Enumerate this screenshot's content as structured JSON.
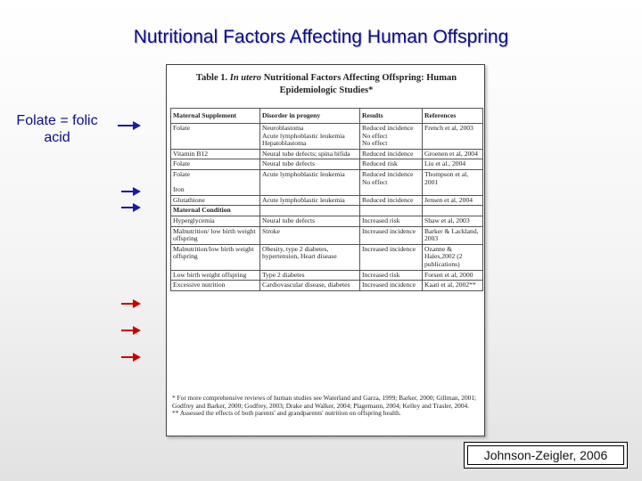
{
  "slide": {
    "title": "Nutritional Factors Affecting Human Offspring",
    "side_note": "Folate = folic acid",
    "credit": "Johnson-Zeigler, 2006"
  },
  "table": {
    "title_prefix": "Table 1.",
    "title_italic": "In utero",
    "title_rest": "Nutritional Factors Affecting Offspring: Human Epidemiologic Studies*",
    "headers": [
      "Maternal Supplement",
      "Disorder in progeny",
      "Results",
      "References"
    ],
    "rows": [
      {
        "c1": "Folate",
        "c2": "Neuroblastoma\nAcute lymphoblastic leukemia\nHepatoblastoma",
        "c3": "Reduced incidence\nNo effect\nNo effect",
        "c4": "French et al, 2003"
      },
      {
        "c1": "Vitamin B12",
        "c2": "Neural tube defects; spina bifida",
        "c3": "Reduced incidence",
        "c4": "Groenen et al, 2004"
      },
      {
        "c1": "Folate",
        "c2": "Neural tube defects",
        "c3": "Reduced risk",
        "c4": "Liu et al., 2004"
      },
      {
        "c1": "Folate\n\nIron",
        "c2": "Acute lymphoblastic leukemia",
        "c3": "Reduced incidence\nNo effect",
        "c4": "Thompson et al, 2001"
      },
      {
        "c1": "Glutathione",
        "c2": "Acute lymphoblastic leukemia",
        "c3": "Reduced incidence",
        "c4": "Jensen et al, 2004"
      }
    ],
    "section_label": "Maternal Condition",
    "rows2": [
      {
        "c1": "Hyperglycemia",
        "c2": "Neural tube defects",
        "c3": "Increased risk",
        "c4": "Shaw et al, 2003"
      },
      {
        "c1": "Malnutrition/ low birth weight offspring",
        "c2": "Stroke",
        "c3": "Increased incidence",
        "c4": "Barker & Lackland, 2003"
      },
      {
        "c1": "Malnutrition/low birth weight offspring",
        "c2": "Obesity, type 2 diabetes, hypertension, Heart disease",
        "c3": "Increased incidence",
        "c4": "Ozanne & Hales,2002 (2 publications)"
      },
      {
        "c1": "Low birth weight offspring",
        "c2": "Type 2 diabetes",
        "c3": "Increased risk",
        "c4": "Forsen et al, 2000"
      },
      {
        "c1": "Excessive nutrition",
        "c2": "Cardiovascular disease, diabetes",
        "c3": "Increased incidence",
        "c4": "Kaati et al, 2002**"
      }
    ],
    "footnote1": "* For more comprehensive reviews of human studies see Waterland and Garza, 1999; Barker, 2000; Gillman, 2001; Godfrey and Barker, 2000; Godfrey, 2003; Drake and Walker, 2004; Plagemann, 2004; Kelley and Trasler, 2004.",
    "footnote2": "** Assessed the effects of both parents' and grandparents' nutrition on offspring health."
  },
  "colors": {
    "title": "#0c0c8a",
    "arrow_blue": "#1a1aa6",
    "arrow_red": "#cc0000"
  }
}
